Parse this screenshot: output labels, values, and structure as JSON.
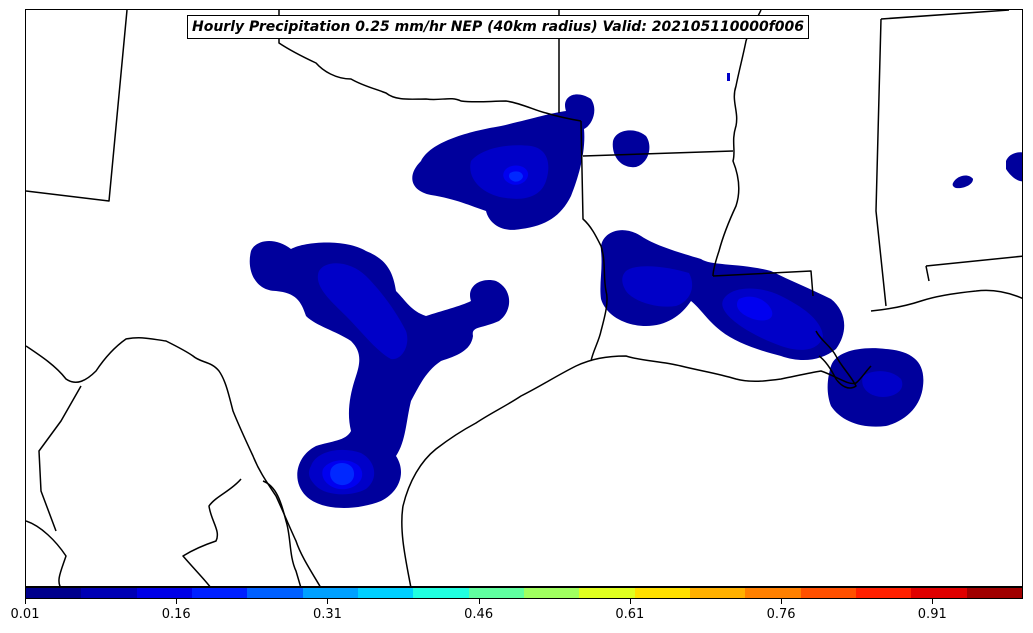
{
  "map": {
    "title": "Hourly Precipitation 0.25 mm/hr NEP (40km radius) Valid: 202105110000f006",
    "quantity": "NEP probability",
    "threshold": "0.25 mm/hr"
  },
  "colorbar": {
    "min": 0.01,
    "max": 1.0,
    "colors": [
      "#00008c",
      "#0000b4",
      "#0000e6",
      "#0020ff",
      "#0060ff",
      "#00a0ff",
      "#00d0ff",
      "#20ffe0",
      "#60ffa0",
      "#a0ff60",
      "#e0ff20",
      "#ffe000",
      "#ffb000",
      "#ff8000",
      "#ff5000",
      "#ff2000",
      "#e00000",
      "#a00000"
    ],
    "tick_labels": [
      "0.01",
      "0.16",
      "0.31",
      "0.46",
      "0.61",
      "0.76",
      "0.91"
    ],
    "tick_values": [
      0.01,
      0.16,
      0.31,
      0.46,
      0.61,
      0.76,
      0.91
    ]
  }
}
